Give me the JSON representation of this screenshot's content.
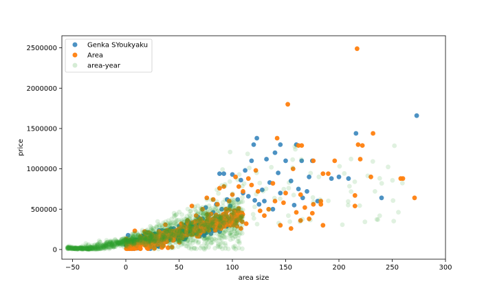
{
  "chart_data": {
    "type": "scatter",
    "title": "",
    "xlabel": "area size",
    "ylabel": "price",
    "xlim": [
      -60,
      300
    ],
    "ylim": [
      -120000,
      2650000
    ],
    "x_ticks": [
      -50,
      0,
      50,
      100,
      150,
      200,
      250,
      300
    ],
    "x_tick_labels": [
      "−50",
      "0",
      "50",
      "100",
      "150",
      "200",
      "250",
      "300"
    ],
    "y_ticks": [
      0,
      500000,
      1000000,
      1500000,
      2000000,
      2500000
    ],
    "y_tick_labels": [
      "0",
      "500000",
      "1000000",
      "1500000",
      "2000000",
      "2500000"
    ],
    "grid": false,
    "legend_position": "top-left",
    "series": [
      {
        "name": "Genka SYoukyaku",
        "color": "#1f77b4",
        "opacity": 0.8,
        "points": [
          [
            273,
            1660000
          ],
          [
            216,
            1440000
          ],
          [
            240,
            640000
          ],
          [
            209,
            880000
          ],
          [
            193,
            880000
          ],
          [
            200,
            900000
          ],
          [
            175,
            1100000
          ],
          [
            165,
            1100000
          ],
          [
            160,
            1300000
          ],
          [
            145,
            1300000
          ],
          [
            140,
            1200000
          ],
          [
            132,
            1120000
          ],
          [
            123,
            1380000
          ],
          [
            120,
            1300000
          ],
          [
            118,
            1100000
          ],
          [
            112,
            980000
          ],
          [
            108,
            860000
          ],
          [
            100,
            930000
          ],
          [
            92,
            940000
          ],
          [
            88,
            940000
          ],
          [
            150,
            1100000
          ],
          [
            155,
            850000
          ],
          [
            162,
            750000
          ],
          [
            170,
            720000
          ],
          [
            180,
            600000
          ],
          [
            125,
            560000
          ],
          [
            130,
            600000
          ],
          [
            138,
            500000
          ],
          [
            145,
            700000
          ],
          [
            110,
            700000
          ],
          [
            105,
            620000
          ],
          [
            98,
            540000
          ],
          [
            95,
            620000
          ],
          [
            90,
            500000
          ],
          [
            85,
            560000
          ],
          [
            82,
            460000
          ],
          [
            78,
            420000
          ],
          [
            75,
            520000
          ],
          [
            72,
            380000
          ],
          [
            68,
            400000
          ],
          [
            65,
            350000
          ],
          [
            60,
            330000
          ],
          [
            55,
            300000
          ],
          [
            50,
            290000
          ],
          [
            45,
            260000
          ],
          [
            40,
            240000
          ],
          [
            35,
            200000
          ],
          [
            30,
            180000
          ],
          [
            25,
            150000
          ],
          [
            20,
            120000
          ],
          [
            15,
            100000
          ],
          [
            10,
            80000
          ],
          [
            5,
            60000
          ],
          [
            2,
            20000
          ],
          [
            158,
            550000
          ],
          [
            166,
            640000
          ],
          [
            172,
            900000
          ],
          [
            143,
            950000
          ],
          [
            135,
            830000
          ],
          [
            128,
            740000
          ],
          [
            115,
            660000
          ],
          [
            121,
            610000
          ],
          [
            102,
            480000
          ],
          [
            97,
            380000
          ],
          [
            80,
            300000
          ],
          [
            70,
            250000
          ],
          [
            62,
            220000
          ],
          [
            58,
            200000
          ],
          [
            48,
            180000
          ],
          [
            42,
            150000
          ]
        ]
      },
      {
        "name": "Area",
        "color": "#ff7f0e",
        "opacity": 0.95,
        "points": [
          [
            217,
            2490000
          ],
          [
            152,
            1800000
          ],
          [
            232,
            1440000
          ],
          [
            142,
            1380000
          ],
          [
            218,
            1300000
          ],
          [
            222,
            1290000
          ],
          [
            165,
            1290000
          ],
          [
            162,
            1290000
          ],
          [
            176,
            1100000
          ],
          [
            220,
            1120000
          ],
          [
            196,
            1100000
          ],
          [
            190,
            940000
          ],
          [
            185,
            940000
          ],
          [
            157,
            1000000
          ],
          [
            230,
            900000
          ],
          [
            258,
            880000
          ],
          [
            260,
            880000
          ],
          [
            271,
            640000
          ],
          [
            215,
            670000
          ],
          [
            215,
            540000
          ],
          [
            183,
            560000
          ],
          [
            183,
            600000
          ],
          [
            164,
            680000
          ],
          [
            176,
            560000
          ],
          [
            175,
            450000
          ],
          [
            185,
            300000
          ],
          [
            164,
            360000
          ],
          [
            150,
            700000
          ],
          [
            148,
            580000
          ],
          [
            140,
            600000
          ],
          [
            138,
            820000
          ],
          [
            134,
            500000
          ],
          [
            130,
            420000
          ],
          [
            126,
            480000
          ],
          [
            124,
            720000
          ],
          [
            122,
            980000
          ],
          [
            118,
            800000
          ],
          [
            115,
            880000
          ],
          [
            110,
            720000
          ],
          [
            106,
            780000
          ],
          [
            103,
            900000
          ],
          [
            100,
            680000
          ],
          [
            97,
            600000
          ],
          [
            94,
            500000
          ],
          [
            92,
            780000
          ],
          [
            88,
            760000
          ],
          [
            86,
            560000
          ],
          [
            82,
            620000
          ],
          [
            80,
            440000
          ],
          [
            76,
            640000
          ],
          [
            72,
            500000
          ],
          [
            70,
            380000
          ],
          [
            66,
            420000
          ],
          [
            62,
            540000
          ],
          [
            58,
            360000
          ],
          [
            55,
            280000
          ],
          [
            52,
            320000
          ],
          [
            48,
            240000
          ],
          [
            44,
            220000
          ],
          [
            40,
            200000
          ],
          [
            36,
            180000
          ],
          [
            32,
            160000
          ],
          [
            28,
            140000
          ],
          [
            24,
            120000
          ],
          [
            20,
            100000
          ],
          [
            16,
            90000
          ],
          [
            12,
            70000
          ],
          [
            8,
            60000
          ],
          [
            4,
            40000
          ],
          [
            145,
            300000
          ],
          [
            155,
            260000
          ],
          [
            160,
            460000
          ],
          [
            168,
            520000
          ],
          [
            172,
            380000
          ],
          [
            113,
            320000
          ],
          [
            108,
            260000
          ],
          [
            104,
            360000
          ],
          [
            98,
            300000
          ],
          [
            90,
            280000
          ],
          [
            84,
            240000
          ]
        ]
      },
      {
        "name": "area-year",
        "color": "#2ca02c",
        "opacity": 0.15,
        "points": []
      }
    ]
  }
}
